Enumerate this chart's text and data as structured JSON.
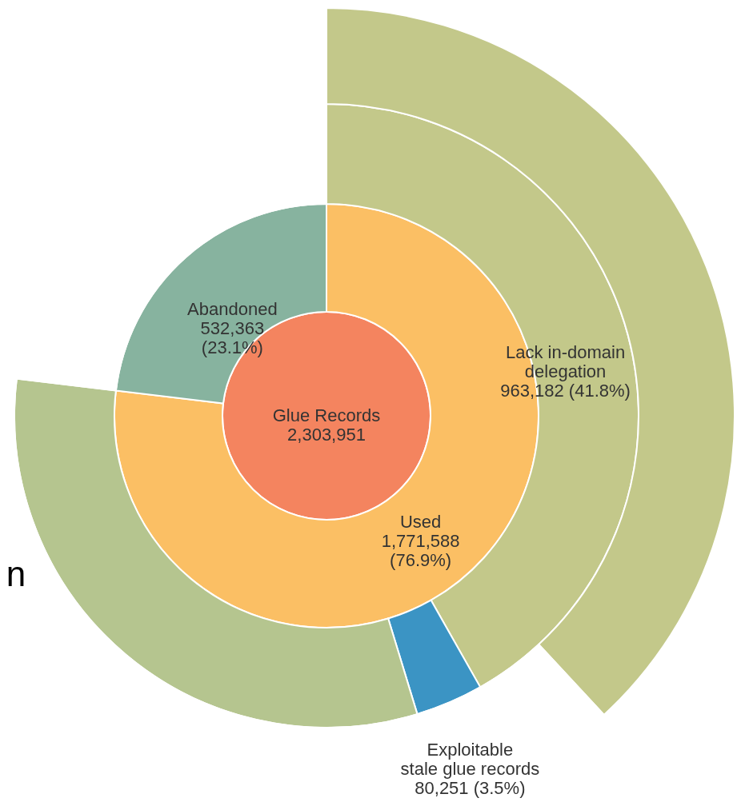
{
  "chart_data": {
    "type": "donut",
    "series": [
      {
        "values": [
          100
        ],
        "colors": [
          "#f4845f"
        ],
        "value_labels": [
          "Glue Records\n2,303,951"
        ]
      },
      {
        "values": [
          76.9,
          23.1
        ],
        "colors": [
          "#fbbf64",
          "#87b39f"
        ],
        "value_labels": [
          "Used\n1,771,588\n(76.9%)",
          "Abandoned\n532,363\n(23.1%)"
        ]
      },
      {
        "values": [
          41.8,
          3.5,
          31.6,
          23.1
        ],
        "colors": [
          "#c3c88a",
          "#3b94c4",
          "#b5c58f",
          "#ffffff"
        ],
        "value_labels": [
          "Lack in-domain\ndelegation\n\n963,182 (41.8%)",
          "Exploitable\nstale glue records\n80,251 (3.5%)",
          null,
          null
        ]
      },
      {
        "values": [
          38.1,
          61.9
        ],
        "colors": [
          "#c3c88a",
          "#ffffff"
        ],
        "value_labels": [
          null,
          null
        ]
      }
    ],
    "annotations": [
      {
        "text": "n"
      }
    ]
  }
}
